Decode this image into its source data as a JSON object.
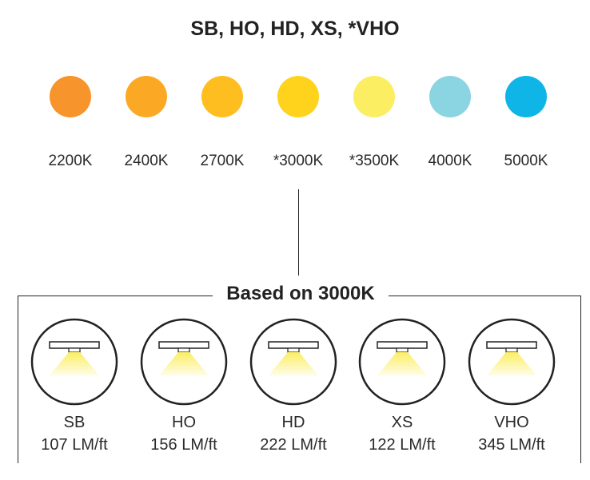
{
  "title": "SB, HO, HD, XS, *VHO",
  "color_temperatures": [
    {
      "label": "2200K",
      "color": "#F7942B"
    },
    {
      "label": "2400K",
      "color": "#FBA925"
    },
    {
      "label": "2700K",
      "color": "#FEBE20"
    },
    {
      "label": "*3000K",
      "color": "#FFD21C"
    },
    {
      "label": "*3500K",
      "color": "#FBEE63"
    },
    {
      "label": "4000K",
      "color": "#8BD4E1"
    },
    {
      "label": "5000K",
      "color": "#0FB5E6"
    }
  ],
  "section_title": "Based on 3000K",
  "fixtures": [
    {
      "name": "SB",
      "lumens": "107 LM/ft"
    },
    {
      "name": "HO",
      "lumens": "156 LM/ft"
    },
    {
      "name": "HD",
      "lumens": "222 LM/ft"
    },
    {
      "name": "XS",
      "lumens": "122 LM/ft"
    },
    {
      "name": "VHO",
      "lumens": "345 LM/ft"
    }
  ],
  "colors": {
    "light_beam": "#FBEE63",
    "outline": "#222222"
  }
}
